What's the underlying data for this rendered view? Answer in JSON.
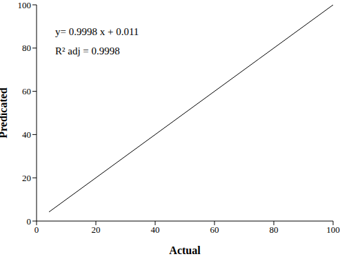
{
  "chart_data": {
    "type": "line",
    "x_label": "Actual",
    "y_label": "Predicated",
    "annotations": [
      "y= 0.9998 x + 0.011",
      "R² adj = 0.9998"
    ],
    "x": [
      4.2,
      27,
      50,
      75,
      100
    ],
    "series": [
      {
        "name": "Predicated",
        "color": "#000000",
        "values": [
          4.2,
          27,
          50,
          75,
          99.98
        ]
      }
    ],
    "xlim": [
      0,
      100
    ],
    "xticks": [
      0,
      20,
      40,
      60,
      80,
      100
    ],
    "ylim": [
      0,
      100
    ],
    "yticks": [
      0,
      20,
      40,
      60,
      80,
      100
    ],
    "grid": false
  }
}
